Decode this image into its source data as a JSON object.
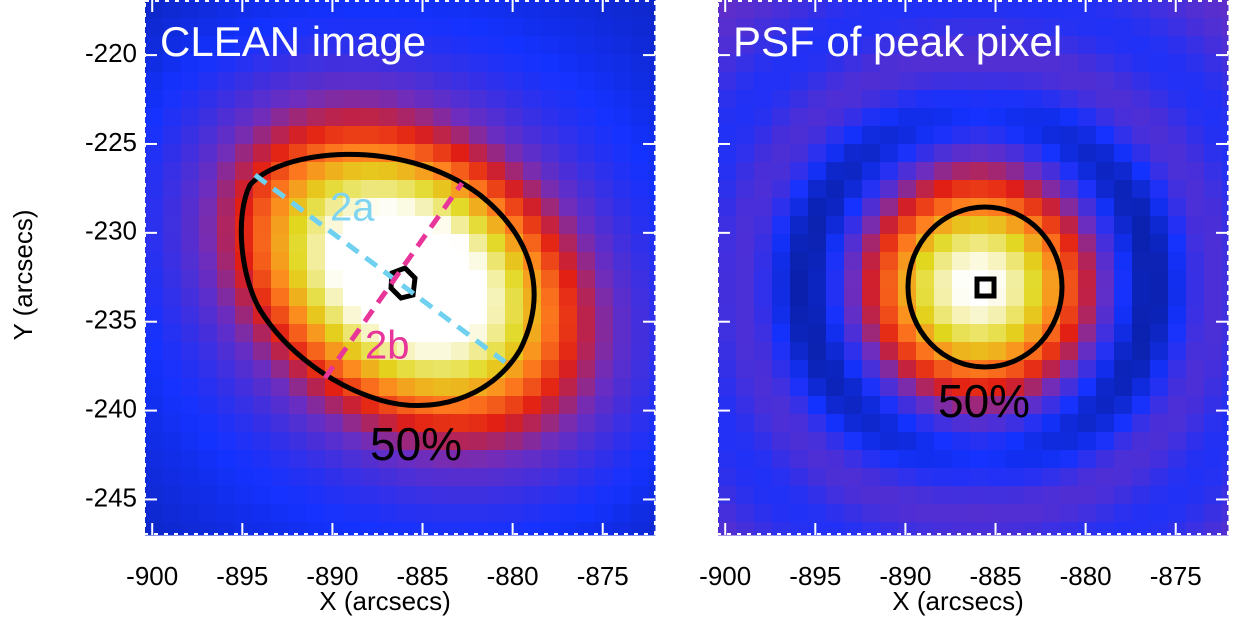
{
  "chart_data": [
    {
      "type": "heatmap",
      "title": "CLEAN image",
      "xlabel": "X (arcsecs)",
      "ylabel": "Y (arcsecs)",
      "xlim": [
        -900.4,
        -872.1
      ],
      "xticks": [
        -900,
        -895,
        -890,
        -885,
        -880,
        -875
      ],
      "ylim": [
        -216.9,
        -247.0
      ],
      "yticks": [
        -220,
        -225,
        -230,
        -235,
        -240,
        -245
      ],
      "annotations": [
        "2a",
        "2b",
        "50%"
      ]
    },
    {
      "type": "heatmap",
      "title": "PSF of peak pixel",
      "xlabel": "X (arcsecs)",
      "xlim": [
        -900.4,
        -872.1
      ],
      "xticks": [
        -900,
        -895,
        -890,
        -885,
        -880,
        -875
      ],
      "ylim": [
        -216.9,
        -247.0
      ],
      "yticks": [
        -220,
        -225,
        -230,
        -235,
        -240,
        -245
      ],
      "annotations": [
        "50%"
      ]
    }
  ]
}
